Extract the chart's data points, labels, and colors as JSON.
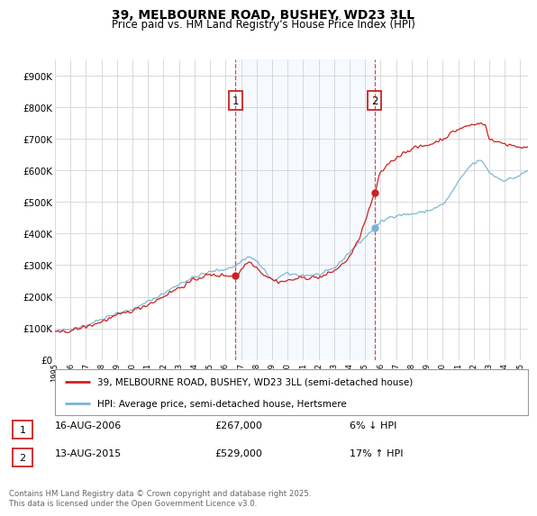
{
  "title_line1": "39, MELBOURNE ROAD, BUSHEY, WD23 3LL",
  "title_line2": "Price paid vs. HM Land Registry's House Price Index (HPI)",
  "ylim": [
    0,
    950000
  ],
  "yticks": [
    0,
    100000,
    200000,
    300000,
    400000,
    500000,
    600000,
    700000,
    800000,
    900000
  ],
  "ytick_labels": [
    "£0",
    "£100K",
    "£200K",
    "£300K",
    "£400K",
    "£500K",
    "£600K",
    "£700K",
    "£800K",
    "£900K"
  ],
  "sale1_x": 2006.622,
  "sale1_price": 267000,
  "sale2_x": 2015.622,
  "sale2_price": 529000,
  "hpi_color": "#7ab3d4",
  "price_color": "#cc2222",
  "vline_color": "#cc2222",
  "shade_color": "#ddeeff",
  "annotation1_label": "1",
  "annotation2_label": "2",
  "legend_label_price": "39, MELBOURNE ROAD, BUSHEY, WD23 3LL (semi-detached house)",
  "legend_label_hpi": "HPI: Average price, semi-detached house, Hertsmere",
  "table_row1_num": "1",
  "table_row1_date": "16-AUG-2006",
  "table_row1_price": "£267,000",
  "table_row1_pct": "6% ↓ HPI",
  "table_row2_num": "2",
  "table_row2_date": "13-AUG-2015",
  "table_row2_price": "£529,000",
  "table_row2_pct": "17% ↑ HPI",
  "footnote": "Contains HM Land Registry data © Crown copyright and database right 2025.\nThis data is licensed under the Open Government Licence v3.0.",
  "bg_color": "#ffffff",
  "grid_color": "#cccccc"
}
